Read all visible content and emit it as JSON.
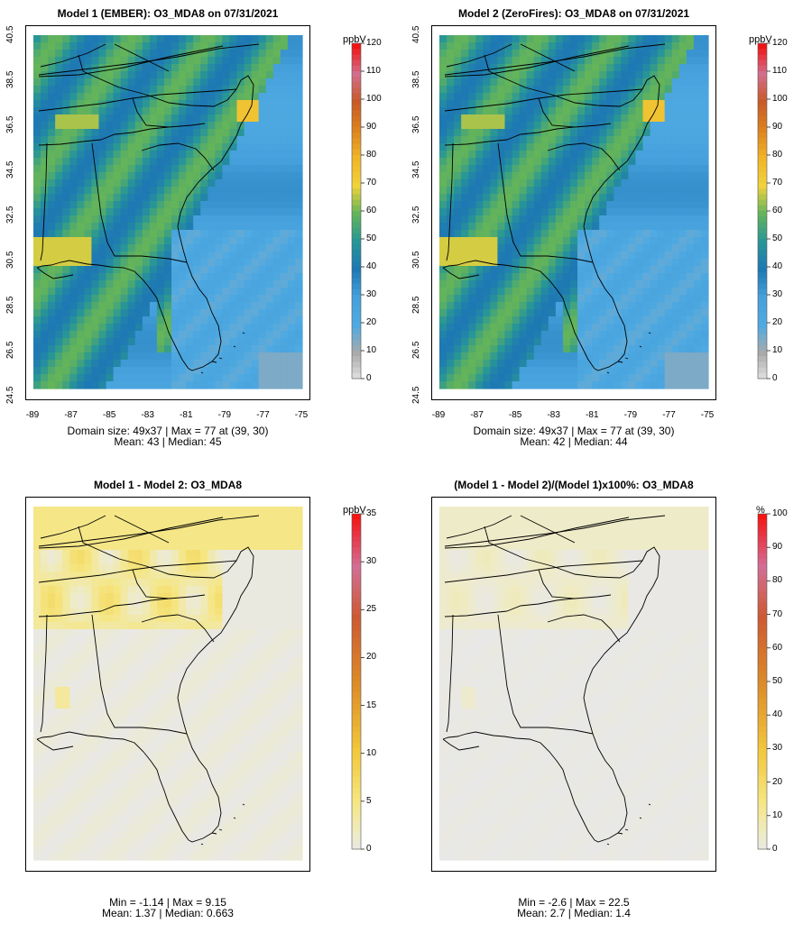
{
  "panels": [
    {
      "title": "Model 1 (EMBER): O3_MDA8 on 07/31/2021",
      "colorbar": {
        "unit": "ppbV",
        "ticks": [
          "120",
          "110",
          "100",
          "90",
          "80",
          "70",
          "60",
          "50",
          "40",
          "30",
          "20",
          "10",
          "0"
        ]
      },
      "stats": [
        "Domain size: 49x37 | Max = 77 at (39, 30)",
        "Mean: 43 |  Median: 45"
      ]
    },
    {
      "title": "Model 2 (ZeroFires): O3_MDA8 on 07/31/2021",
      "colorbar": {
        "unit": "ppbV",
        "ticks": [
          "120",
          "110",
          "100",
          "90",
          "80",
          "70",
          "60",
          "50",
          "40",
          "30",
          "20",
          "10",
          "0"
        ]
      },
      "stats": [
        "Domain size: 49x37 | Max = 77 at (39, 30)",
        "Mean: 42 |  Median: 44"
      ]
    },
    {
      "title": "Model 1 - Model 2: O3_MDA8",
      "colorbar": {
        "unit": "ppbV",
        "ticks": [
          "35",
          "30",
          "25",
          "20",
          "15",
          "10",
          "5",
          "0"
        ]
      },
      "stats": [
        "Min = -1.14 | Max = 9.15",
        "Mean: 1.37 |  Median: 0.663"
      ]
    },
    {
      "title": "(Model 1 - Model 2)/(Model 1)x100%: O3_MDA8",
      "colorbar": {
        "unit": "%",
        "ticks": [
          "100",
          "90",
          "80",
          "70",
          "60",
          "50",
          "40",
          "30",
          "20",
          "10",
          "0"
        ]
      },
      "stats": [
        "Min = -2.6 | Max = 22.5",
        "Mean: 2.7 |  Median: 1.4"
      ]
    }
  ],
  "axes": {
    "x_ticks": [
      "-89",
      "-87",
      "-85",
      "-83",
      "-81",
      "-79",
      "-77",
      "-75"
    ],
    "y_ticks": [
      "40.5",
      "38.5",
      "36.5",
      "34.5",
      "32.5",
      "30.5",
      "28.5",
      "26.5",
      "24.5"
    ]
  },
  "colors": {
    "land_high": "#2f9fa0",
    "ocean_low": "#4aa8e0",
    "ember_hot": "#f2c431",
    "diff_land": "#eeeab8",
    "diff_bg": "#e6e6e6"
  }
}
